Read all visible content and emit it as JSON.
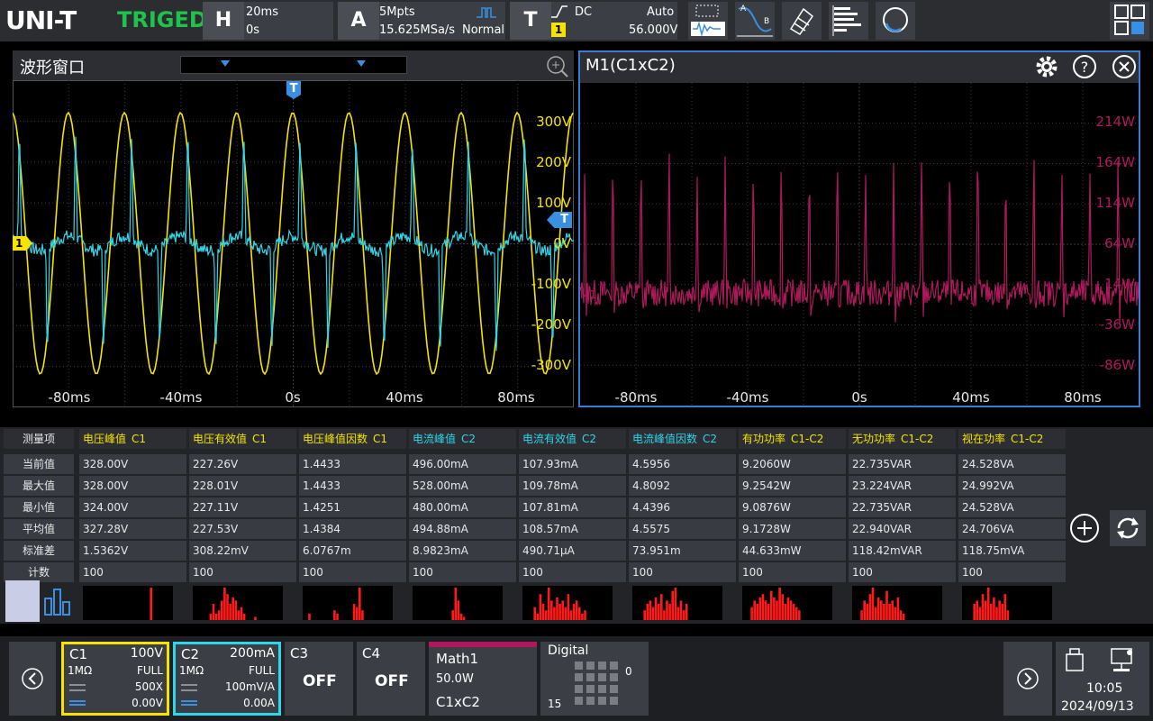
{
  "topbar": {
    "brand": "UNI-T",
    "trigger_status": "TRIGED",
    "horizontal": {
      "letter": "H",
      "timebase": "20ms",
      "delay": "0s"
    },
    "acquire": {
      "letter": "A",
      "depth": "5Mpts",
      "sample_rate": "15.625MSa/s",
      "mode": "Normal"
    },
    "trigger": {
      "letter": "T",
      "coupling": "DC",
      "sweep": "Auto",
      "source": "1",
      "level": "56.000V"
    },
    "colors": {
      "brand": "#ffffff",
      "triged": "#1fc24a"
    }
  },
  "left_panel": {
    "title": "波形窗口",
    "trigger_marker": "T",
    "ch1_marker": "1",
    "y_labels": [
      "300V",
      "200V",
      "100V",
      "0V",
      "-100V",
      "-200V",
      "-300V"
    ],
    "x_labels": [
      "-80ms",
      "-40ms",
      "0s",
      "40ms",
      "80ms"
    ]
  },
  "right_panel": {
    "title": "M1(C1xC2)",
    "marker": "M1",
    "y_labels": [
      "214W",
      "164W",
      "114W",
      "64W",
      "14W",
      "-36W",
      "-86W"
    ],
    "x_labels": [
      "-80ms",
      "-40ms",
      "0s",
      "40ms",
      "80ms"
    ]
  },
  "measurements": {
    "row_labels": [
      "测量项",
      "当前值",
      "最大值",
      "最小值",
      "平均值",
      "标准差",
      "计数"
    ],
    "columns": [
      {
        "name": "电压峰值",
        "src": "C1",
        "color": "#f5e400",
        "values": [
          "328.00V",
          "328.00V",
          "324.00V",
          "327.28V",
          "1.5362V",
          "100"
        ]
      },
      {
        "name": "电压有效值",
        "src": "C1",
        "color": "#f5e400",
        "values": [
          "227.26V",
          "228.01V",
          "227.11V",
          "227.53V",
          "308.22mV",
          "100"
        ]
      },
      {
        "name": "电压峰值因数",
        "src": "C1",
        "color": "#f5e400",
        "values": [
          "1.4433",
          "1.4433",
          "1.4251",
          "1.4384",
          "6.0767m",
          "100"
        ]
      },
      {
        "name": "电流峰值",
        "src": "C2",
        "color": "#2fd5e8",
        "values": [
          "496.00mA",
          "528.00mA",
          "480.00mA",
          "494.88mA",
          "8.9823mA",
          "100"
        ]
      },
      {
        "name": "电流有效值",
        "src": "C2",
        "color": "#2fd5e8",
        "values": [
          "107.93mA",
          "109.78mA",
          "107.81mA",
          "108.57mA",
          "490.71µA",
          "100"
        ]
      },
      {
        "name": "电流峰值因数",
        "src": "C2",
        "color": "#2fd5e8",
        "values": [
          "4.5956",
          "4.8092",
          "4.4396",
          "4.5575",
          "73.951m",
          "100"
        ]
      },
      {
        "name": "有功功率",
        "src": "C1-C2",
        "color": "#f5e400",
        "values": [
          "9.2060W",
          "9.2542W",
          "9.0876W",
          "9.1728W",
          "44.633mW",
          "100"
        ]
      },
      {
        "name": "无功功率",
        "src": "C1-C2",
        "color": "#f5e400",
        "values": [
          "22.735VAR",
          "23.224VAR",
          "22.735VAR",
          "22.940VAR",
          "118.42mVAR",
          "100"
        ]
      },
      {
        "name": "视在功率",
        "src": "C1-C2",
        "color": "#f5e400",
        "values": [
          "24.528VA",
          "24.992VA",
          "24.528VA",
          "24.706VA",
          "118.75mVA",
          "100"
        ]
      }
    ]
  },
  "bottombar": {
    "c1": {
      "name": "C1",
      "scale": "100V",
      "imp": "1MΩ",
      "bw": "FULL",
      "probe": "500X",
      "offset": "0.00V",
      "color": "#f5e400"
    },
    "c2": {
      "name": "C2",
      "scale": "200mA",
      "imp": "1MΩ",
      "bw": "FULL",
      "probe": "100mV/A",
      "offset": "0.00A",
      "color": "#2fd5e8"
    },
    "c3": {
      "name": "C3",
      "state": "OFF"
    },
    "c4": {
      "name": "C4",
      "state": "OFF"
    },
    "math": {
      "name": "Math1",
      "scale": "50.0W",
      "expr": "C1xC2",
      "color": "#b0185e"
    },
    "digital": {
      "name": "Digital",
      "low": "0",
      "high": "15"
    },
    "time": "10:05",
    "date": "2024/09/13"
  }
}
